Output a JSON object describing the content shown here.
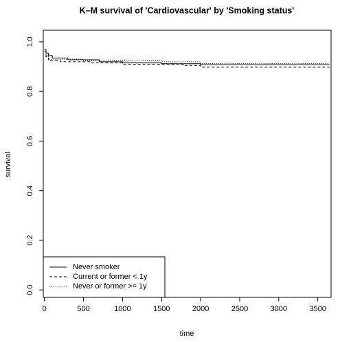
{
  "chart_data": {
    "type": "line",
    "step": true,
    "title": "K–M survival of 'Cardiovascular' by 'Smoking status'",
    "x_label": "time",
    "y_label": "survival",
    "xlim": [
      -15,
      3670
    ],
    "ylim": [
      -0.03,
      1.047
    ],
    "xticks": [
      0,
      500,
      1000,
      1500,
      2000,
      2500,
      3000,
      3500
    ],
    "yticks": [
      {
        "value": 0,
        "label": "0.0"
      },
      0.2,
      0.4,
      0.6,
      0.8,
      {
        "value": 1,
        "label": "1.0"
      }
    ],
    "grid": false,
    "legend": "bottom-left",
    "series": [
      {
        "name": "Never smoker",
        "color": "#000000",
        "linestyle": "solid",
        "x": [
          0,
          20,
          50,
          100,
          300,
          700,
          1000,
          1500,
          2000,
          3650
        ],
        "values": [
          0.97,
          0.955,
          0.945,
          0.935,
          0.928,
          0.92,
          0.915,
          0.912,
          0.908,
          0.908
        ]
      },
      {
        "name": "Current or former < 1y",
        "color": "#000000",
        "linestyle": "dashed",
        "x": [
          0,
          20,
          50,
          200,
          600,
          1000,
          1800,
          2000,
          3650
        ],
        "values": [
          0.96,
          0.94,
          0.925,
          0.92,
          0.915,
          0.91,
          0.905,
          0.898,
          0.898
        ]
      },
      {
        "name": "Never or former >= 1y",
        "color": "#000000",
        "linestyle": "dotted",
        "x": [
          0,
          20,
          50,
          500,
          1500,
          2000,
          3650
        ],
        "values": [
          0.96,
          0.945,
          0.93,
          0.925,
          0.92,
          0.913,
          0.913
        ]
      }
    ]
  }
}
